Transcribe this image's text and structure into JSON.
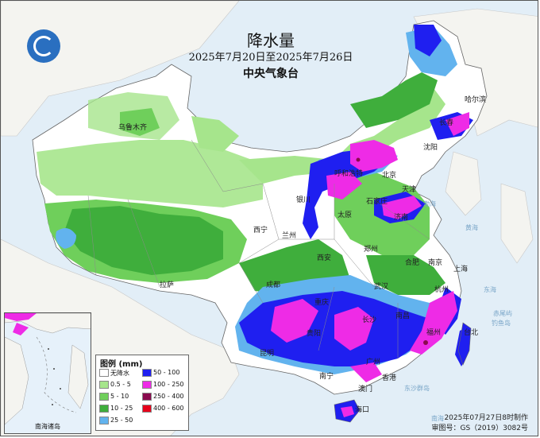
{
  "header": {
    "title": "降水量",
    "date_range": "2025年7月20日至2025年7月26日",
    "agency": "中央气象台"
  },
  "colors": {
    "sea": "#e2eef7",
    "land_outside": "#f4f4f0",
    "no_rain": "#ffffff",
    "r0_5_5": "#a6e58c",
    "r5_10": "#6fcf5b",
    "r10_25": "#3fae3c",
    "r25_50": "#62b3ee",
    "r50_100": "#1f1ff0",
    "r100_250": "#ee2be6",
    "r250_400": "#8a0a4e",
    "r400_600": "#e6001a"
  },
  "cities": [
    "乌鲁木齐",
    "哈尔滨",
    "长春",
    "沈阳",
    "北京",
    "天津",
    "呼和浩特",
    "石家庄",
    "太原",
    "济南",
    "银川",
    "兰州",
    "西宁",
    "西安",
    "郑州",
    "合肥",
    "南京",
    "上海",
    "武汉",
    "杭州",
    "成都",
    "重庆",
    "长沙",
    "南昌",
    "福州",
    "拉萨",
    "贵阳",
    "昆明",
    "南宁",
    "广州",
    "香港",
    "澳门",
    "海口",
    "台北"
  ],
  "sea_labels": [
    "东海",
    "黄海",
    "渤海",
    "南海",
    "东沙群岛",
    "钓鱼岛",
    "赤尾屿"
  ],
  "legend": {
    "title": "图例 (mm)",
    "items": [
      {
        "label": "无降水",
        "color": "#ffffff"
      },
      {
        "label": "0.5 - 5",
        "color": "#a6e58c"
      },
      {
        "label": "5 - 10",
        "color": "#6fcf5b"
      },
      {
        "label": "10 - 25",
        "color": "#3fae3c"
      },
      {
        "label": "25 - 50",
        "color": "#62b3ee"
      },
      {
        "label": "50 - 100",
        "color": "#1f1ff0"
      },
      {
        "label": "100 - 250",
        "color": "#ee2be6"
      },
      {
        "label": "250 - 400",
        "color": "#8a0a4e"
      },
      {
        "label": "400 - 600",
        "color": "#e6001a"
      }
    ]
  },
  "inset": {
    "label": "南海诸岛"
  },
  "footer": {
    "issued": "2025年07月27日8时制作",
    "approval": "审图号：GS（2019）3082号"
  }
}
